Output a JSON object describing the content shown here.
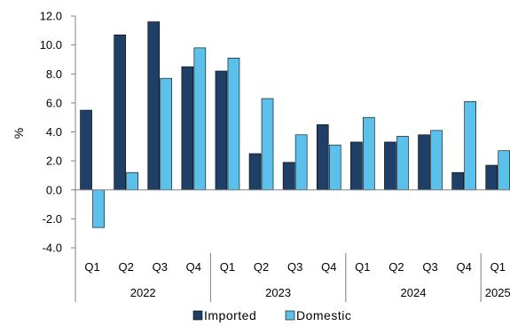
{
  "chart_data": {
    "type": "bar",
    "categories": [
      "Q1",
      "Q2",
      "Q3",
      "Q4",
      "Q1",
      "Q2",
      "Q3",
      "Q4",
      "Q1",
      "Q2",
      "Q3",
      "Q4",
      "Q1"
    ],
    "groups": [
      {
        "label": "2022",
        "count": 4
      },
      {
        "label": "2023",
        "count": 4
      },
      {
        "label": "2024",
        "count": 4
      },
      {
        "label": "2025",
        "count": 1
      }
    ],
    "series": [
      {
        "name": "Imported",
        "color": "#1f3f66",
        "values": [
          5.5,
          10.7,
          11.6,
          8.5,
          8.2,
          2.5,
          1.9,
          4.5,
          3.3,
          3.3,
          3.8,
          1.2,
          1.7
        ]
      },
      {
        "name": "Domestic",
        "color": "#5bc0ea",
        "values": [
          -2.6,
          1.2,
          7.7,
          9.8,
          9.1,
          6.3,
          3.8,
          3.1,
          5.0,
          3.7,
          4.1,
          6.1,
          2.7
        ]
      }
    ],
    "ylabel": "%",
    "ylim": [
      -4.0,
      12.0
    ],
    "yticks": [
      "-4.0",
      "-2.0",
      "0.0",
      "2.0",
      "4.0",
      "6.0",
      "8.0",
      "10.0",
      "12.0"
    ],
    "grid": false,
    "legend_position": "bottom"
  }
}
